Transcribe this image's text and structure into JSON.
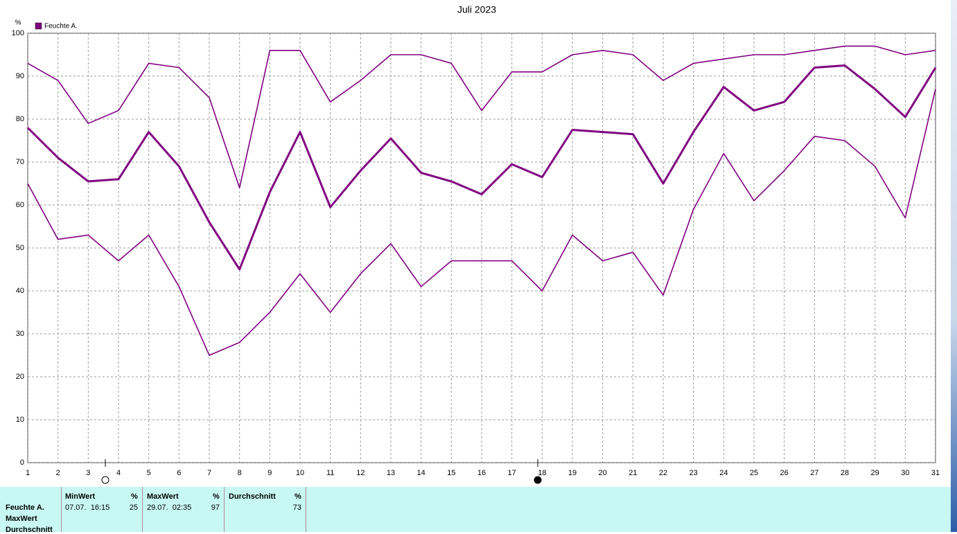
{
  "chart_data": {
    "type": "line",
    "title": "Juli 2023",
    "ylabel": "%",
    "x": [
      1,
      2,
      3,
      4,
      5,
      6,
      7,
      8,
      9,
      10,
      11,
      12,
      13,
      14,
      15,
      16,
      17,
      18,
      19,
      20,
      21,
      22,
      23,
      24,
      25,
      26,
      27,
      28,
      29,
      30,
      31
    ],
    "series": [
      {
        "color": "#800080",
        "values": [
          93,
          89,
          79,
          82,
          93,
          92,
          85,
          64,
          96,
          96,
          84,
          89,
          95,
          95,
          93,
          82,
          91,
          91,
          95,
          96,
          95,
          89,
          93,
          94,
          95,
          95,
          96,
          97,
          97,
          95,
          96
        ]
      },
      {
        "name": "Feuchte A.",
        "color": "#800080",
        "values": [
          78,
          71,
          65.5,
          66,
          77,
          69,
          56,
          45,
          63,
          77,
          59.5,
          68,
          75.5,
          67.5,
          65.5,
          62.5,
          69.5,
          66.5,
          77.5,
          77,
          76.5,
          65,
          77,
          87.5,
          82,
          84,
          92,
          92.5,
          87,
          80.5,
          92
        ]
      },
      {
        "color": "#800080",
        "values": [
          65,
          52,
          53,
          47,
          53,
          41,
          25,
          28,
          35,
          44,
          35,
          44,
          51,
          41,
          47,
          47,
          47,
          40,
          53,
          47,
          49,
          39,
          59,
          72,
          61,
          68,
          76,
          75,
          69,
          57,
          87
        ]
      }
    ],
    "xlim": [
      1,
      31
    ],
    "xticks": [
      1,
      2,
      3,
      4,
      5,
      6,
      7,
      8,
      9,
      10,
      11,
      12,
      13,
      14,
      15,
      16,
      17,
      18,
      19,
      20,
      21,
      22,
      23,
      24,
      25,
      26,
      27,
      28,
      29,
      30,
      31
    ],
    "ylim": [
      0,
      100
    ],
    "yticks": [
      0,
      10,
      20,
      30,
      40,
      50,
      60,
      70,
      80,
      90,
      100
    ],
    "grid": true,
    "legend": "top-left"
  },
  "stats": {
    "row_labels": [
      "Feuchte A.",
      "MaxWert",
      "Durchschnitt"
    ],
    "columns": [
      {
        "header": "MinWert",
        "unit": "%",
        "time": "07.07.  16:15",
        "value": 25
      },
      {
        "header": "MaxWert",
        "unit": "%",
        "time": "29.07.  02:35",
        "value": 97
      },
      {
        "header": "Durchschnitt",
        "unit": "%",
        "value": 73
      }
    ]
  }
}
